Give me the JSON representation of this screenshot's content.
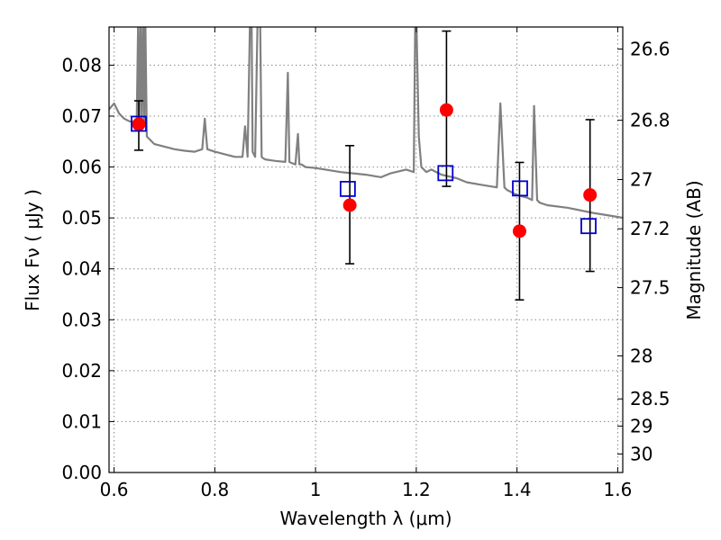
{
  "chart_data": {
    "type": "scatter",
    "title": "",
    "xlabel": "Wavelength  λ (μm)",
    "ylabel": "Flux  Fν  ( μJy )",
    "y2label": "Magnitude (AB)",
    "xlim": [
      0.59,
      1.61
    ],
    "ylim": [
      0.0,
      0.0875
    ],
    "grid": true,
    "x_ticks": [
      0.6,
      0.8,
      1.0,
      1.2,
      1.4,
      1.6
    ],
    "x_tick_labels": [
      "0.6",
      "0.8",
      "1",
      "1.2",
      "1.4",
      "1.6"
    ],
    "y_ticks": [
      0.0,
      0.01,
      0.02,
      0.03,
      0.04,
      0.05,
      0.06,
      0.07,
      0.08
    ],
    "y_tick_labels": [
      "0.00",
      "0.01",
      "0.02",
      "0.03",
      "0.04",
      "0.05",
      "0.06",
      "0.07",
      "0.08"
    ],
    "y2_ticks": [
      26.6,
      26.8,
      27.0,
      27.2,
      27.5,
      28.0,
      28.5,
      29.0,
      30.0
    ],
    "y2_tick_labels": [
      "26.6",
      "26.8",
      "27",
      "27.2",
      "27.5",
      "28",
      "28.5",
      "29",
      "30"
    ],
    "colors": {
      "model": "#808080",
      "observed": "#ff0000",
      "model_band": "#0000cc",
      "errorbar": "#000000"
    },
    "series": [
      {
        "kind": "line",
        "x": [
          0.59,
          0.6,
          0.61,
          0.62,
          0.63,
          0.64,
          0.645,
          0.648,
          0.65,
          0.653,
          0.655,
          0.658,
          0.66,
          0.662,
          0.665,
          0.67,
          0.68,
          0.7,
          0.72,
          0.74,
          0.76,
          0.775,
          0.78,
          0.785,
          0.8,
          0.82,
          0.84,
          0.855,
          0.86,
          0.865,
          0.87,
          0.873,
          0.875,
          0.88,
          0.885,
          0.89,
          0.893,
          0.895,
          0.9,
          0.92,
          0.94,
          0.945,
          0.948,
          0.952,
          0.96,
          0.965,
          0.968,
          0.972,
          0.98,
          1.0,
          1.05,
          1.1,
          1.13,
          1.15,
          1.18,
          1.195,
          1.198,
          1.2,
          1.205,
          1.21,
          1.22,
          1.23,
          1.25,
          1.28,
          1.3,
          1.33,
          1.36,
          1.367,
          1.375,
          1.38,
          1.4,
          1.42,
          1.43,
          1.434,
          1.44,
          1.445,
          1.46,
          1.5,
          1.55,
          1.6,
          1.61
        ],
        "y": [
          0.0713,
          0.0725,
          0.0705,
          0.0695,
          0.069,
          0.0688,
          0.069,
          0.09,
          0.069,
          0.09,
          0.068,
          0.09,
          0.068,
          0.09,
          0.066,
          0.0655,
          0.0645,
          0.064,
          0.0635,
          0.0632,
          0.063,
          0.0635,
          0.0695,
          0.0635,
          0.063,
          0.0625,
          0.062,
          0.062,
          0.068,
          0.062,
          0.09,
          0.09,
          0.063,
          0.062,
          0.09,
          0.09,
          0.062,
          0.0618,
          0.0615,
          0.0612,
          0.061,
          0.0785,
          0.061,
          0.0608,
          0.0605,
          0.0665,
          0.0605,
          0.0605,
          0.06,
          0.0598,
          0.059,
          0.0585,
          0.058,
          0.0588,
          0.0595,
          0.059,
          0.09,
          0.09,
          0.066,
          0.06,
          0.059,
          0.0595,
          0.0585,
          0.0578,
          0.057,
          0.0565,
          0.056,
          0.0725,
          0.056,
          0.0555,
          0.0545,
          0.054,
          0.0535,
          0.072,
          0.0535,
          0.053,
          0.0525,
          0.052,
          0.051,
          0.0502,
          0.05
        ]
      },
      {
        "kind": "points",
        "marker": "open-square",
        "x": [
          0.649,
          1.064,
          1.258,
          1.406,
          1.542
        ],
        "y": [
          0.0685,
          0.0557,
          0.0588,
          0.0558,
          0.0484
        ]
      },
      {
        "kind": "points",
        "marker": "filled-circle",
        "x": [
          0.649,
          1.068,
          1.26,
          1.405,
          1.545
        ],
        "y": [
          0.0684,
          0.0525,
          0.0712,
          0.0474,
          0.0545
        ],
        "yerr_low": [
          0.0633,
          0.041,
          0.0562,
          0.0339,
          0.0395
        ],
        "yerr_high": [
          0.073,
          0.0642,
          0.0867,
          0.0609,
          0.0693
        ]
      }
    ]
  }
}
